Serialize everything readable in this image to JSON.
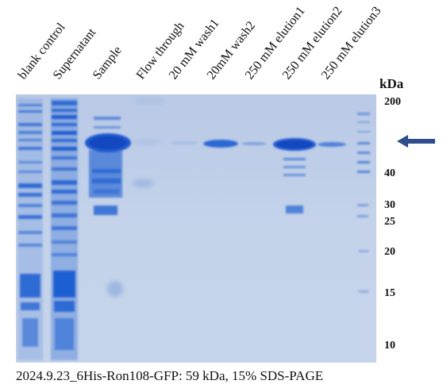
{
  "lanes": [
    {
      "label": "blank control"
    },
    {
      "label": "Supernatant"
    },
    {
      "label": "Sample"
    },
    {
      "label": "Flow through"
    },
    {
      "label": "20 mM wash1"
    },
    {
      "label": "20mM wash2"
    },
    {
      "label": "250 mM elution1"
    },
    {
      "label": "250 mM elution2"
    },
    {
      "label": "250 mM elution3"
    }
  ],
  "unit_label": "kDa",
  "markers": [
    "200",
    "40",
    "30",
    "25",
    "20",
    "15",
    "10"
  ],
  "caption": "2024.9.23_6His-Ron108-GFP: 59 kDa, 15% SDS-PAGE",
  "colors": {
    "gel_background": "#c3d2e9",
    "band_blue": "#1d5fd6",
    "arrow": "#2f4f8c"
  }
}
